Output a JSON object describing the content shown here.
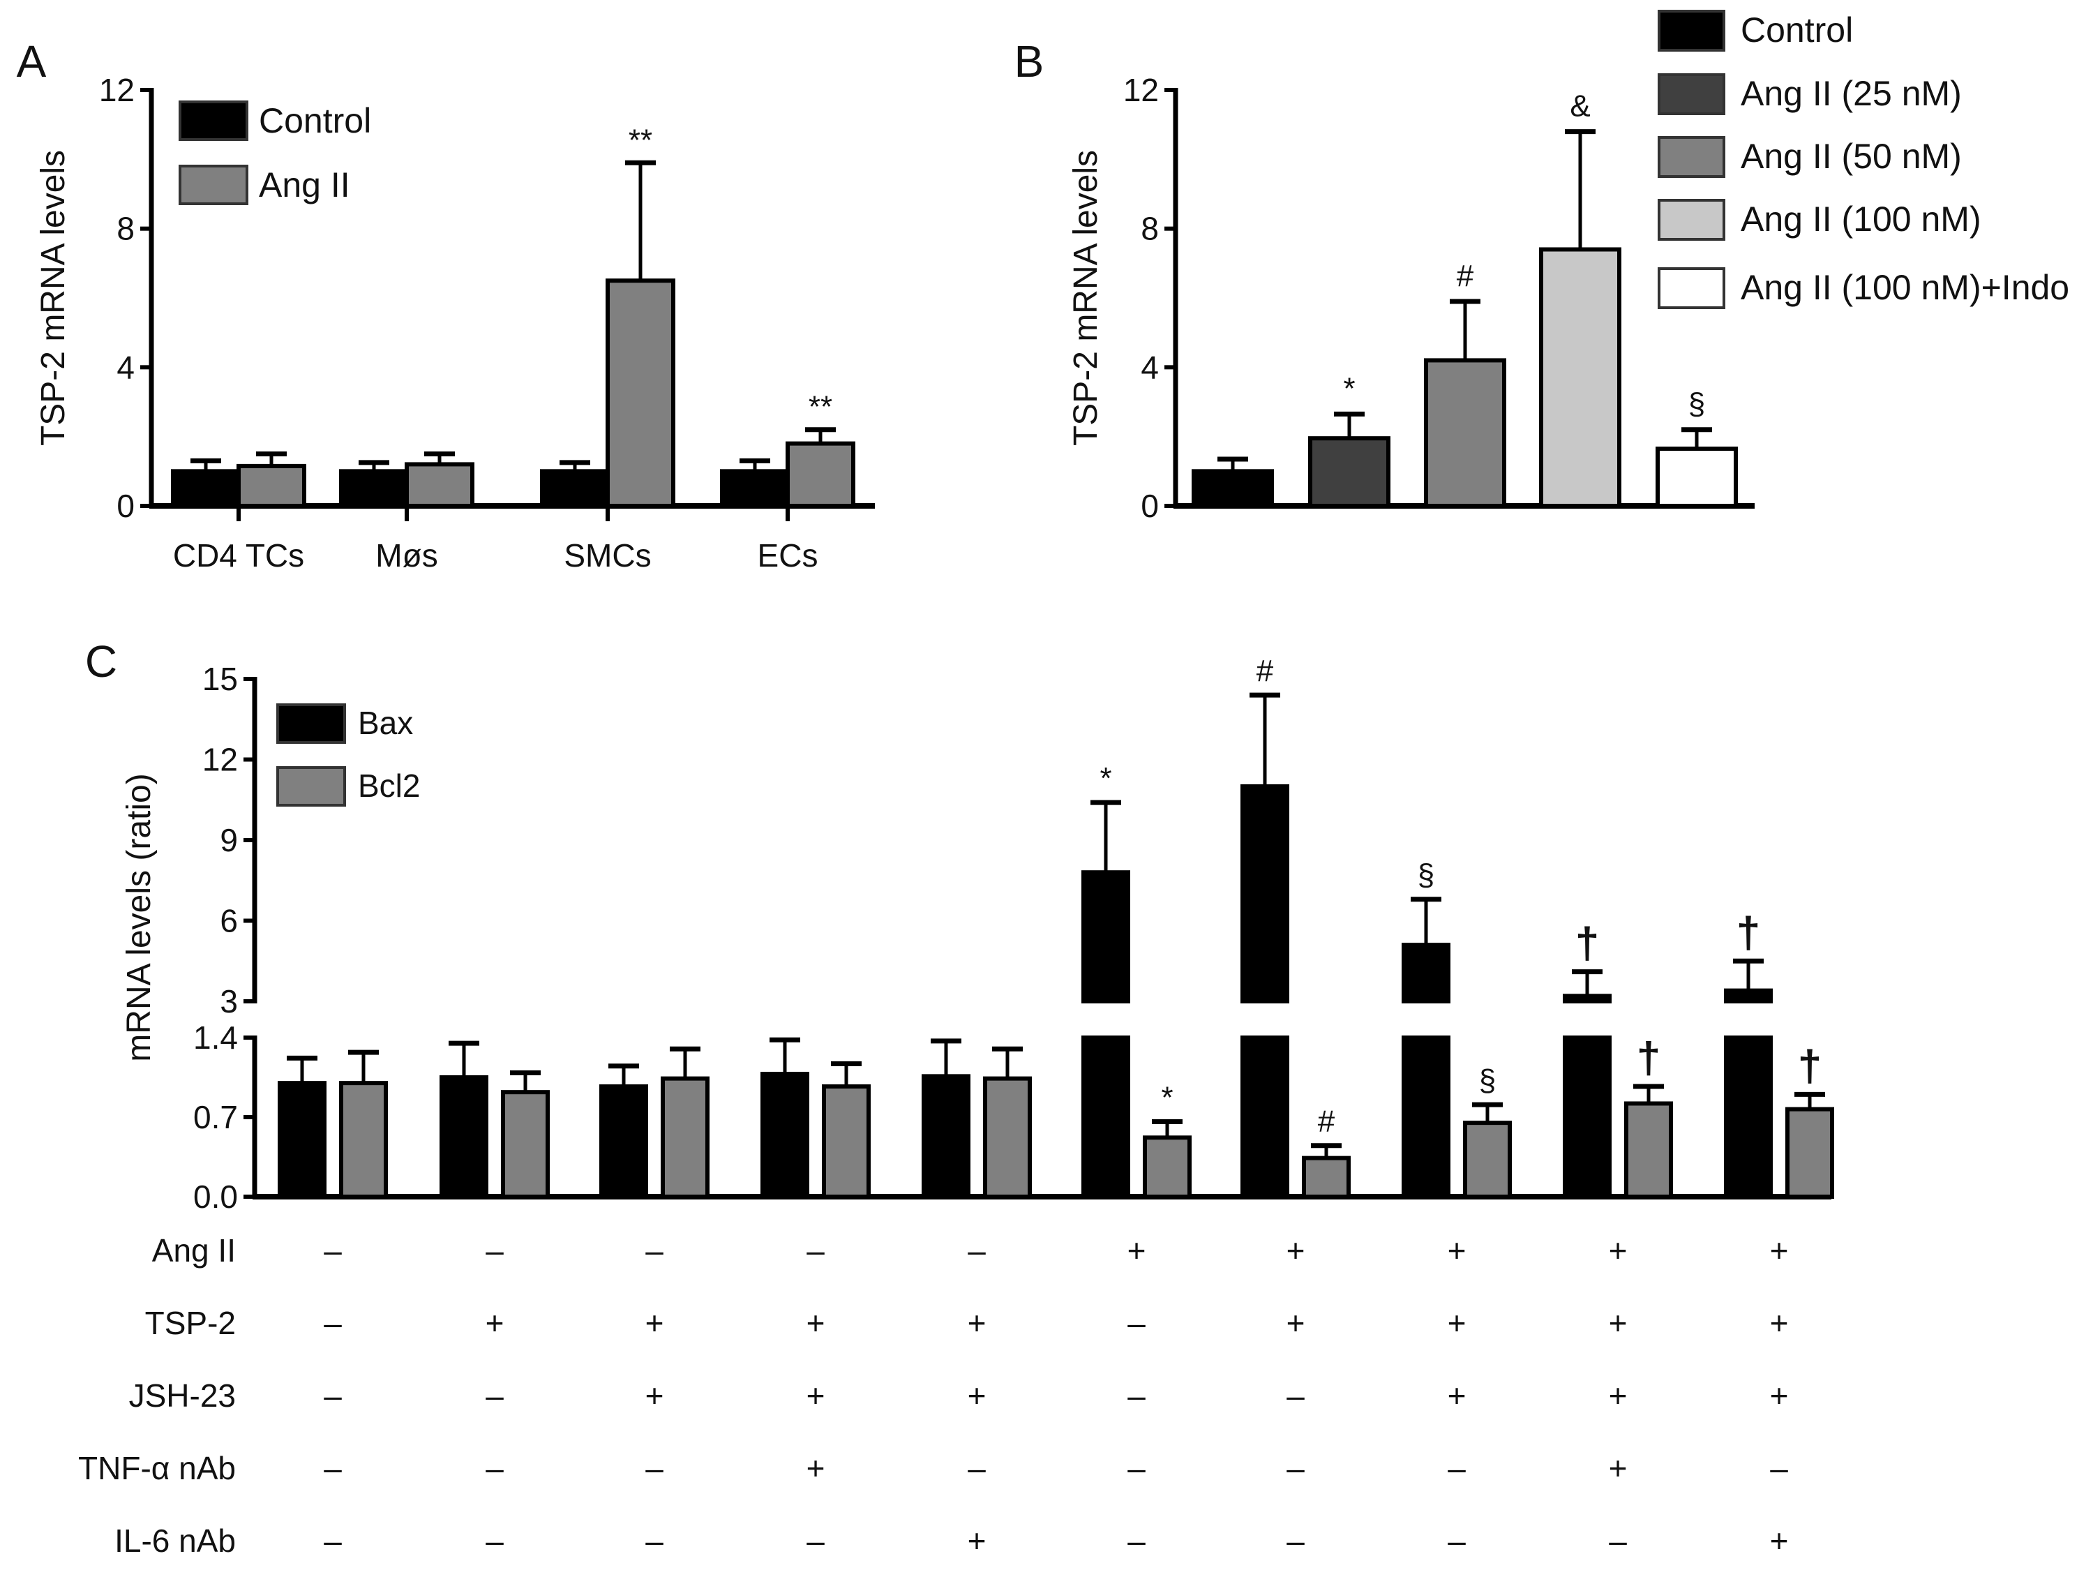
{
  "colors": {
    "control": "#000000",
    "angii": "#808080",
    "ang25": "#404040",
    "ang50": "#808080",
    "ang100": "#c8c8c8",
    "indo": "#ffffff",
    "bax": "#000000",
    "bcl2": "#808080"
  },
  "chart_data": [
    {
      "type": "bar",
      "panel": "A",
      "ylabel": "TSP-2 mRNA levels",
      "ylim": [
        0,
        12
      ],
      "yticks": [
        "0",
        "4",
        "8",
        "12"
      ],
      "categories": [
        "CD4 TCs",
        "Møs",
        "SMCs",
        "ECs"
      ],
      "legend": "top-left",
      "series": [
        {
          "name": "Control",
          "values": [
            1.0,
            1.0,
            1.0,
            1.0
          ],
          "error_upper": [
            1.3,
            1.25,
            1.25,
            1.3
          ],
          "annotations": [
            "",
            "",
            "",
            ""
          ]
        },
        {
          "name": "Ang II",
          "values": [
            1.15,
            1.2,
            6.5,
            1.8
          ],
          "error_upper": [
            1.5,
            1.5,
            9.9,
            2.2
          ],
          "annotations": [
            "",
            "",
            "**",
            "**"
          ]
        }
      ]
    },
    {
      "type": "bar",
      "panel": "B",
      "ylabel": "TSP-2 mRNA levels",
      "ylim": [
        0,
        12
      ],
      "yticks": [
        "0",
        "4",
        "8",
        "12"
      ],
      "legend": "top-right",
      "categories": [
        "Control",
        "Ang II (25 nM)",
        "Ang II (50 nM)",
        "Ang II (100 nM)",
        "Ang II (100 nM)+Indo"
      ],
      "values": [
        1.0,
        1.95,
        4.2,
        7.4,
        1.65
      ],
      "error_upper": [
        1.35,
        2.65,
        5.9,
        10.8,
        2.2
      ],
      "annotations": [
        "",
        "*",
        "#",
        "&",
        "§"
      ]
    },
    {
      "type": "bar",
      "panel": "C",
      "ylabel": "mRNA levels (ratio)",
      "ylim": [
        0,
        15
      ],
      "axis_break": [
        1.4,
        3
      ],
      "yticks_lower": [
        "0.0",
        "0.7",
        "1.4"
      ],
      "yticks_upper": [
        "3",
        "6",
        "9",
        "12",
        "15"
      ],
      "legend": "top-left",
      "series": [
        {
          "name": "Bax",
          "values": [
            1.0,
            1.05,
            0.97,
            1.08,
            1.06,
            7.8,
            11.0,
            5.1,
            3.2,
            3.4
          ],
          "error_upper": [
            1.22,
            1.35,
            1.15,
            1.38,
            1.37,
            10.4,
            14.4,
            6.8,
            4.1,
            4.5
          ],
          "annotations": [
            "",
            "",
            "",
            "",
            "",
            "*",
            "#",
            "§",
            "†",
            "†"
          ]
        },
        {
          "name": "Bcl2",
          "values": [
            1.0,
            0.92,
            1.04,
            0.97,
            1.04,
            0.52,
            0.34,
            0.65,
            0.82,
            0.77
          ],
          "error_upper": [
            1.27,
            1.09,
            1.3,
            1.17,
            1.3,
            0.66,
            0.45,
            0.81,
            0.97,
            0.9
          ],
          "annotations": [
            "",
            "",
            "",
            "",
            "",
            "*",
            "#",
            "§",
            "†",
            "†"
          ]
        }
      ],
      "conditions": [
        {
          "label": "Ang II",
          "signs": [
            "–",
            "–",
            "–",
            "–",
            "–",
            "+",
            "+",
            "+",
            "+",
            "+"
          ]
        },
        {
          "label": "TSP-2",
          "signs": [
            "–",
            "+",
            "+",
            "+",
            "+",
            "–",
            "+",
            "+",
            "+",
            "+"
          ]
        },
        {
          "label": "JSH-23",
          "signs": [
            "–",
            "–",
            "+",
            "+",
            "+",
            "–",
            "–",
            "+",
            "+",
            "+"
          ]
        },
        {
          "label": "TNF-α nAb",
          "signs": [
            "–",
            "–",
            "–",
            "+",
            "–",
            "–",
            "–",
            "–",
            "+",
            "–"
          ]
        },
        {
          "label": "IL-6 nAb",
          "signs": [
            "–",
            "–",
            "–",
            "–",
            "+",
            "–",
            "–",
            "–",
            "–",
            "+"
          ]
        }
      ]
    }
  ]
}
